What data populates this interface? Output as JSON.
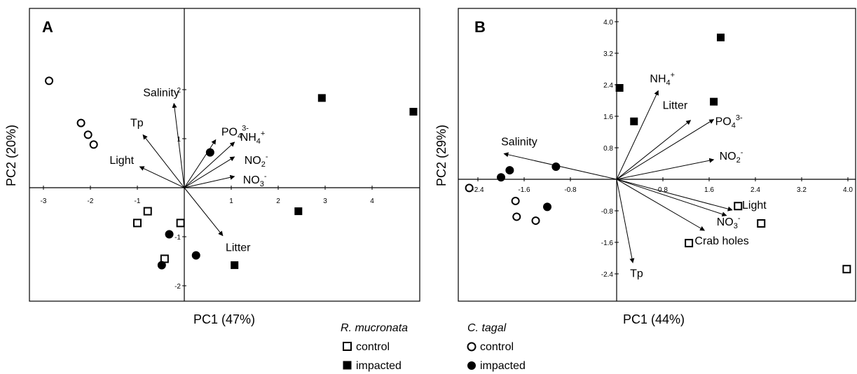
{
  "chart_data": [
    {
      "type": "scatter",
      "panel": "A",
      "xlabel": "PC1 (47%)",
      "ylabel": "PC2 (20%)",
      "xlim": [
        -3.3,
        5.0
      ],
      "ylim": [
        -2.3,
        3.6
      ],
      "xticks": [
        {
          "v": -3,
          "t": "-3"
        },
        {
          "v": -2,
          "t": "-2"
        },
        {
          "v": -1,
          "t": "-1"
        },
        {
          "v": 1,
          "t": "1"
        },
        {
          "v": 2,
          "t": "2"
        },
        {
          "v": 3,
          "t": "3"
        },
        {
          "v": 4,
          "t": "4"
        }
      ],
      "yticks": [
        {
          "v": -2,
          "t": "-2"
        },
        {
          "v": -1,
          "t": "-1"
        },
        {
          "v": 1,
          "t": "1"
        },
        {
          "v": 2,
          "t": "2"
        }
      ],
      "vectors": [
        {
          "base": "Salinity",
          "sup": "",
          "sub": "",
          "x": -0.22,
          "y": 1.72
        },
        {
          "base": "Tp",
          "sup": "",
          "sub": "",
          "x": -0.88,
          "y": 1.08
        },
        {
          "base": "Light",
          "sup": "",
          "sub": "",
          "x": -0.95,
          "y": 0.43
        },
        {
          "base": "PO",
          "sub": "4",
          "sup": "3-",
          "x": 0.67,
          "y": 0.98
        },
        {
          "base": "NH",
          "sub": "4",
          "sup": "+",
          "x": 1.07,
          "y": 0.93
        },
        {
          "base": "NO",
          "sub": "2",
          "sup": "-",
          "x": 1.07,
          "y": 0.63
        },
        {
          "base": "NO",
          "sub": "3",
          "sup": "-",
          "x": 1.07,
          "y": 0.23
        },
        {
          "base": "Litter",
          "sup": "",
          "sub": "",
          "x": 0.82,
          "y": -0.98
        }
      ],
      "series": [
        {
          "name": "R. mucronata control",
          "marker": "open-square",
          "points": [
            [
              -0.78,
              -0.48
            ],
            [
              -1.0,
              -0.72
            ],
            [
              -0.08,
              -0.72
            ],
            [
              -0.42,
              -1.45
            ]
          ]
        },
        {
          "name": "R. mucronata impacted",
          "marker": "filled-square",
          "points": [
            [
              2.93,
              1.83
            ],
            [
              4.88,
              1.55
            ],
            [
              2.43,
              -0.48
            ],
            [
              1.07,
              -1.58
            ]
          ]
        },
        {
          "name": "C. tagal control",
          "marker": "open-circle",
          "points": [
            [
              -2.88,
              2.18
            ],
            [
              -2.2,
              1.32
            ],
            [
              -2.05,
              1.08
            ],
            [
              -1.93,
              0.88
            ]
          ]
        },
        {
          "name": "C. tagal impacted",
          "marker": "filled-circle",
          "points": [
            [
              0.55,
              0.72
            ],
            [
              -0.32,
              -0.95
            ],
            [
              0.25,
              -1.38
            ],
            [
              -0.48,
              -1.58
            ]
          ]
        }
      ]
    },
    {
      "type": "scatter",
      "panel": "B",
      "xlabel": "PC1 (44%)",
      "ylabel": "PC2 (29%)",
      "xlim": [
        -2.85,
        4.1
      ],
      "ylim": [
        -3.1,
        4.3
      ],
      "xticks": [
        {
          "v": -2.4,
          "t": "-2.4"
        },
        {
          "v": -1.6,
          "t": "-1.6"
        },
        {
          "v": -0.8,
          "t": "-0.8"
        },
        {
          "v": 0.8,
          "t": "0.8"
        },
        {
          "v": 1.6,
          "t": "1.6"
        },
        {
          "v": 2.4,
          "t": "2.4"
        },
        {
          "v": 3.2,
          "t": "3.2"
        },
        {
          "v": 4.0,
          "t": "4.0"
        }
      ],
      "yticks": [
        {
          "v": -2.4,
          "t": "-2.4"
        },
        {
          "v": -1.6,
          "t": "-1.6"
        },
        {
          "v": -0.8,
          "t": "-0.8"
        },
        {
          "v": 0.8,
          "t": "0.8"
        },
        {
          "v": 1.6,
          "t": "1.6"
        },
        {
          "v": 2.4,
          "t": "2.4"
        },
        {
          "v": 3.2,
          "t": "3.2"
        },
        {
          "v": 4.0,
          "t": "4.0"
        }
      ],
      "vectors": [
        {
          "base": "Salinity",
          "sup": "",
          "sub": "",
          "x": -1.95,
          "y": 0.65
        },
        {
          "base": "NH",
          "sub": "4",
          "sup": "+",
          "x": 0.72,
          "y": 2.25
        },
        {
          "base": "Litter",
          "sup": "",
          "sub": "",
          "x": 1.28,
          "y": 1.5
        },
        {
          "base": "PO",
          "sub": "4",
          "sup": "3-",
          "x": 1.68,
          "y": 1.52
        },
        {
          "base": "NO",
          "sub": "2",
          "sup": "-",
          "x": 1.68,
          "y": 0.5
        },
        {
          "base": "Light",
          "sup": "",
          "sub": "",
          "x": 2.0,
          "y": -0.78
        },
        {
          "base": "NO",
          "sub": "3",
          "sup": "-",
          "x": 1.9,
          "y": -0.92
        },
        {
          "base": "Crab holes",
          "sup": "",
          "sub": "",
          "x": 1.52,
          "y": -1.3
        },
        {
          "base": "Tp",
          "sup": "",
          "sub": "",
          "x": 0.28,
          "y": -2.12
        }
      ],
      "series": [
        {
          "name": "R. mucronata control",
          "marker": "open-square",
          "points": [
            [
              2.1,
              -0.68
            ],
            [
              2.5,
              -1.12
            ],
            [
              1.25,
              -1.62
            ],
            [
              3.98,
              -2.28
            ]
          ]
        },
        {
          "name": "R. mucronata impacted",
          "marker": "filled-square",
          "points": [
            [
              1.8,
              3.6
            ],
            [
              0.05,
              2.32
            ],
            [
              1.68,
              1.97
            ],
            [
              0.3,
              1.47
            ]
          ]
        },
        {
          "name": "C. tagal control",
          "marker": "open-circle",
          "points": [
            [
              -2.55,
              -0.22
            ],
            [
              -1.75,
              -0.55
            ],
            [
              -1.73,
              -0.95
            ],
            [
              -1.4,
              -1.05
            ]
          ]
        },
        {
          "name": "C. tagal impacted",
          "marker": "filled-circle",
          "points": [
            [
              -1.85,
              0.23
            ],
            [
              -2.0,
              0.05
            ],
            [
              -1.05,
              0.32
            ],
            [
              -1.2,
              -0.7
            ]
          ]
        }
      ]
    }
  ],
  "legend": {
    "group1_title": "R. mucronata",
    "group2_title": "C. tagal",
    "control_label": "control",
    "impacted_label": "impacted"
  }
}
